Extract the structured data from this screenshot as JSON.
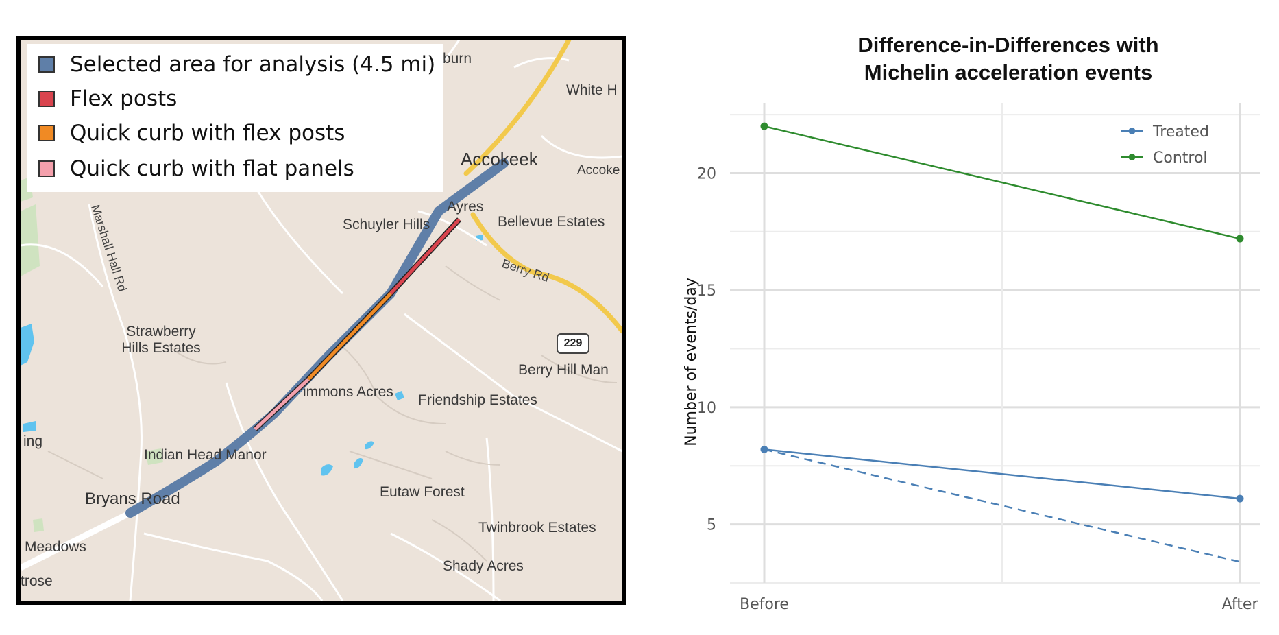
{
  "map": {
    "legend": [
      {
        "label": "Selected area for analysis (4.5 mi)",
        "color": "#5f7fa8"
      },
      {
        "label": "Flex posts",
        "color": "#d9444e"
      },
      {
        "label": "Quick curb with flex posts",
        "color": "#f08a24"
      },
      {
        "label": "Quick curb with flat panels",
        "color": "#f4a0ac"
      }
    ],
    "places": {
      "accokeek": "Accokeek",
      "accokeek_edge": "Accoke",
      "white_h": "White H",
      "burn": "burn",
      "ayres": "Ayres",
      "schuyler_hills": "Schuyler Hills",
      "bellevue_estates": "Bellevue Estates",
      "berry_rd": "Berry Rd",
      "marshall_hall_rd": "Marshall Hall Rd",
      "strawberry_line1": "Strawberry",
      "strawberry_line2": "Hills Estates",
      "route_229": "229",
      "berry_hill_man": "Berry Hill Man",
      "simmons_acres": "immons Acres",
      "friendship_estates": "Friendship Estates",
      "ing": "ing",
      "indian_head_manor": "Indian Head Manor",
      "bryans_road": "Bryans Road",
      "eutaw_forest": "Eutaw Forest",
      "twinbrook_estates": "Twinbrook Estates",
      "meadows": "Meadows",
      "shady_acres": "Shady Acres",
      "trose": "trose"
    }
  },
  "chart_data": {
    "type": "line",
    "title_line1": "Difference-in-Differences with",
    "title_line2": "Michelin acceleration events",
    "xlabel": "",
    "ylabel": "Number of events/day",
    "categories": [
      "Before",
      "After"
    ],
    "yticks": [
      5,
      10,
      15,
      20
    ],
    "ylim": [
      2.5,
      23
    ],
    "grid": true,
    "legend_position": "top-right",
    "series": [
      {
        "name": "Treated",
        "values": [
          8.2,
          6.1
        ],
        "color": "#4a7fb5",
        "style": "solid"
      },
      {
        "name": "Control",
        "values": [
          22.0,
          17.2
        ],
        "color": "#2e8b2e",
        "style": "solid"
      }
    ],
    "counterfactual": {
      "values": [
        8.2,
        3.4
      ],
      "color": "#4a7fb5",
      "style": "dashed"
    }
  }
}
